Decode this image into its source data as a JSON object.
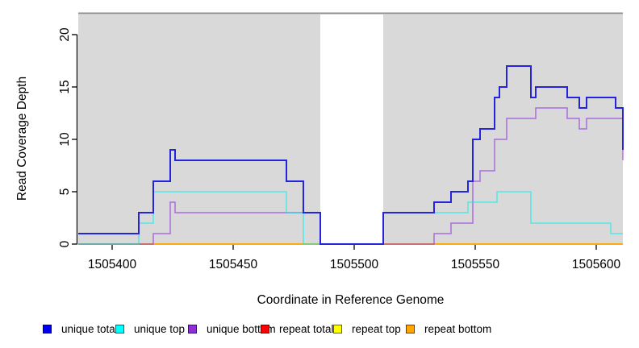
{
  "chart_data": {
    "type": "line",
    "subtype": "step-coverage-plot",
    "title": "",
    "xlabel": "Coordinate in Reference Genome",
    "ylabel": "Read Coverage Depth",
    "xlim": [
      1505386,
      1505611
    ],
    "ylim": [
      0,
      22.15
    ],
    "x_ticks": [
      1505400,
      1505450,
      1505500,
      1505550,
      1505600
    ],
    "x_tick_labels": [
      "1505400",
      "1505450",
      "1505500",
      "1505550",
      "1505600"
    ],
    "y_ticks": [
      0,
      5,
      10,
      15,
      20
    ],
    "y_tick_labels": [
      "0",
      "5",
      "10",
      "15",
      "20"
    ],
    "grid": false,
    "legend_position": "bottom",
    "plot_bg": "#d9d9d9",
    "masked_region": {
      "x0": 1505486,
      "x1": 1505512,
      "color": "#ffffff"
    },
    "series": [
      {
        "name": "repeat total",
        "color": "#ee0000",
        "opacity": 1,
        "width": 1.5,
        "points": [
          [
            1505386,
            0
          ],
          [
            1505611,
            0
          ]
        ]
      },
      {
        "name": "repeat top",
        "color": "#ffff00",
        "opacity": 1,
        "width": 1.5,
        "points": [
          [
            1505386,
            0
          ],
          [
            1505611,
            0
          ]
        ]
      },
      {
        "name": "repeat bottom",
        "color": "#ffa500",
        "opacity": 1,
        "width": 1.5,
        "points": [
          [
            1505386,
            0
          ],
          [
            1505611,
            0
          ]
        ]
      },
      {
        "name": "unique bottom",
        "color": "#8b2be2",
        "opacity": 0.62,
        "width": 1.5,
        "points": [
          [
            1505386,
            0
          ],
          [
            1505417,
            1
          ],
          [
            1505424,
            4
          ],
          [
            1505426,
            3
          ],
          [
            1505486,
            0
          ],
          [
            1505533,
            1
          ],
          [
            1505540,
            2
          ],
          [
            1505549,
            6
          ],
          [
            1505552,
            7
          ],
          [
            1505558,
            10
          ],
          [
            1505563,
            12
          ],
          [
            1505575,
            13
          ],
          [
            1505588,
            12
          ],
          [
            1505593,
            11
          ],
          [
            1505596,
            12
          ],
          [
            1505611,
            8
          ]
        ]
      },
      {
        "name": "unique top",
        "color": "#00eeee",
        "opacity": 0.62,
        "width": 1.5,
        "points": [
          [
            1505386,
            0
          ],
          [
            1505411,
            2
          ],
          [
            1505417,
            5
          ],
          [
            1505472,
            3
          ],
          [
            1505479,
            0
          ],
          [
            1505512,
            3
          ],
          [
            1505547,
            4
          ],
          [
            1505559,
            5
          ],
          [
            1505573,
            2
          ],
          [
            1505606,
            1
          ],
          [
            1505611,
            1
          ]
        ]
      },
      {
        "name": "unique total",
        "color": "#2424dd",
        "opacity": 1,
        "width": 2,
        "points": [
          [
            1505386,
            1
          ],
          [
            1505411,
            3
          ],
          [
            1505417,
            6
          ],
          [
            1505424,
            9
          ],
          [
            1505426,
            8
          ],
          [
            1505472,
            6
          ],
          [
            1505479,
            3
          ],
          [
            1505486,
            0
          ],
          [
            1505512,
            3
          ],
          [
            1505533,
            4
          ],
          [
            1505540,
            5
          ],
          [
            1505547,
            6
          ],
          [
            1505549,
            10
          ],
          [
            1505552,
            11
          ],
          [
            1505558,
            14
          ],
          [
            1505560,
            15
          ],
          [
            1505563,
            17
          ],
          [
            1505573,
            14
          ],
          [
            1505575,
            15
          ],
          [
            1505588,
            14
          ],
          [
            1505593,
            13
          ],
          [
            1505596,
            14
          ],
          [
            1505608,
            13
          ],
          [
            1505611,
            9
          ]
        ]
      }
    ]
  },
  "legend": {
    "items": [
      {
        "label": "unique total",
        "color": "#0000ee"
      },
      {
        "label": "unique top",
        "color": "#00ffff"
      },
      {
        "label": "unique bottom",
        "color": "#8f2fd6"
      },
      {
        "label": "repeat total",
        "color": "#ff0000"
      },
      {
        "label": "repeat top",
        "color": "#ffff00"
      },
      {
        "label": "repeat bottom",
        "color": "#ffa500"
      }
    ]
  }
}
